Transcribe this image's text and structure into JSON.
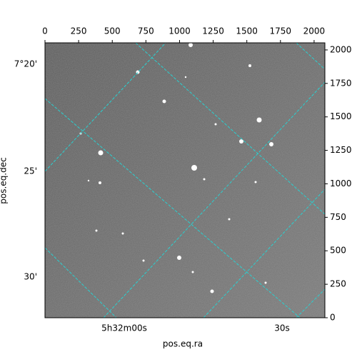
{
  "chart_data": {
    "type": "image",
    "xlabel": "pos.eq.ra",
    "ylabel": "pos.eq.dec",
    "xlim": [
      0,
      2080
    ],
    "xticks": [
      0,
      250,
      500,
      750,
      1000,
      1250,
      1500,
      1750,
      2000
    ],
    "ylim": [
      0,
      2053
    ],
    "yticks": [
      0,
      250,
      500,
      750,
      1000,
      1250,
      1500,
      1750,
      2000
    ],
    "ra_labels": [
      "5h32m00s",
      "30s"
    ],
    "dec_labels": [
      "7°20'",
      "25'",
      "30'"
    ]
  }
}
